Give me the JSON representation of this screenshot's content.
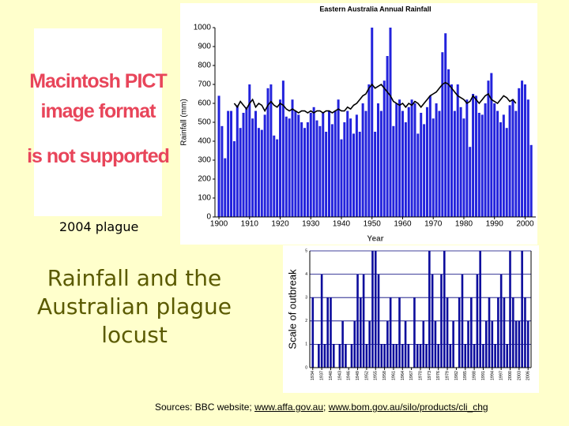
{
  "title": "Rainfall and the Australian plague locust",
  "placeholder": [
    "Macintosh PICT",
    "image format",
    "is not supported"
  ],
  "caption": "2004 plague",
  "sources": {
    "text": "Sources: BBC website;",
    "separator": ";",
    "links": [
      "www.affa.gov.au",
      "www.bom.gov.au/silo/products/cli_chg"
    ]
  },
  "chart_data": [
    {
      "type": "bar",
      "title": "Eastern Australia Annual Rainfall",
      "x_label": "Year",
      "y_label": "Rainfall (mm)",
      "x": [
        1900,
        1901,
        1902,
        1903,
        1904,
        1905,
        1906,
        1907,
        1908,
        1909,
        1910,
        1911,
        1912,
        1913,
        1914,
        1915,
        1916,
        1917,
        1918,
        1919,
        1920,
        1921,
        1922,
        1923,
        1924,
        1925,
        1926,
        1927,
        1928,
        1929,
        1930,
        1931,
        1932,
        1933,
        1934,
        1935,
        1936,
        1937,
        1938,
        1939,
        1940,
        1941,
        1942,
        1943,
        1944,
        1945,
        1946,
        1947,
        1948,
        1949,
        1950,
        1951,
        1952,
        1953,
        1954,
        1955,
        1956,
        1957,
        1958,
        1959,
        1960,
        1961,
        1962,
        1963,
        1964,
        1965,
        1966,
        1967,
        1968,
        1969,
        1970,
        1971,
        1972,
        1973,
        1974,
        1975,
        1976,
        1977,
        1978,
        1979,
        1980,
        1981,
        1982,
        1983,
        1984,
        1985,
        1986,
        1987,
        1988,
        1989,
        1990,
        1991,
        1992,
        1993,
        1994,
        1995,
        1996,
        1997,
        1998,
        1999,
        2000,
        2001,
        2002
      ],
      "series": [
        {
          "type": "bar",
          "color": "#2323dc",
          "values": [
            640,
            480,
            310,
            560,
            560,
            400,
            590,
            470,
            550,
            580,
            700,
            520,
            560,
            470,
            460,
            540,
            680,
            700,
            430,
            410,
            620,
            720,
            530,
            520,
            620,
            560,
            540,
            500,
            470,
            500,
            550,
            580,
            510,
            480,
            550,
            450,
            560,
            490,
            560,
            620,
            410,
            500,
            560,
            520,
            440,
            540,
            450,
            600,
            560,
            700,
            1000,
            450,
            600,
            560,
            720,
            850,
            1000,
            480,
            600,
            620,
            560,
            500,
            580,
            620,
            600,
            440,
            550,
            490,
            580,
            640,
            520,
            600,
            560,
            870,
            970,
            780,
            700,
            560,
            700,
            580,
            520,
            620,
            370,
            650,
            640,
            550,
            540,
            600,
            720,
            760,
            600,
            560,
            500,
            540,
            470,
            590,
            620,
            560,
            680,
            720,
            700,
            620,
            380
          ]
        },
        {
          "type": "line",
          "color": "#000000",
          "values": [
            null,
            null,
            null,
            null,
            null,
            600,
            580,
            610,
            590,
            570,
            600,
            620,
            580,
            600,
            590,
            560,
            590,
            610,
            590,
            580,
            600,
            590,
            570,
            560,
            570,
            560,
            550,
            560,
            560,
            550,
            560,
            550,
            560,
            560,
            550,
            560,
            560,
            550,
            560,
            570,
            560,
            560,
            580,
            570,
            590,
            600,
            620,
            640,
            650,
            680,
            700,
            680,
            690,
            700,
            680,
            660,
            640,
            610,
            600,
            590,
            600,
            580,
            600,
            590,
            610,
            600,
            580,
            600,
            620,
            640,
            650,
            660,
            680,
            700,
            710,
            700,
            680,
            660,
            640,
            630,
            620,
            600,
            610,
            640,
            620,
            600,
            620,
            640,
            650,
            620,
            610,
            600,
            620,
            640,
            630,
            610,
            620,
            600,
            null,
            null,
            null,
            null,
            null
          ]
        }
      ],
      "xlim": [
        1898.7,
        2003.5
      ],
      "ylim": [
        0,
        1000
      ],
      "xticks": [
        1900,
        1910,
        1920,
        1930,
        1940,
        1950,
        1960,
        1970,
        1980,
        1990,
        2000
      ],
      "yticks": [
        0,
        100,
        200,
        300,
        400,
        500,
        600,
        700,
        800,
        900,
        1000
      ]
    },
    {
      "type": "bar",
      "y_label": "Scale of outbreak",
      "x": [
        1934,
        1935,
        1936,
        1937,
        1938,
        1939,
        1940,
        1941,
        1942,
        1943,
        1944,
        1945,
        1946,
        1947,
        1948,
        1949,
        1950,
        1951,
        1952,
        1953,
        1954,
        1955,
        1956,
        1957,
        1958,
        1959,
        1960,
        1961,
        1962,
        1963,
        1964,
        1965,
        1966,
        1967,
        1968,
        1969,
        1970,
        1971,
        1972,
        1973,
        1974,
        1975,
        1976,
        1977,
        1978,
        1979,
        1980,
        1981,
        1982,
        1983,
        1984,
        1985,
        1986,
        1987,
        1988,
        1989,
        1990,
        1991,
        1992,
        1993,
        1994,
        1995,
        1996,
        1997,
        1998,
        1999,
        2000,
        2001,
        2002,
        2003,
        2004,
        2005,
        2006
      ],
      "series": [
        {
          "type": "bar",
          "color": "#0c0c9c",
          "values": [
            3,
            0,
            1,
            4,
            1,
            3,
            3,
            1,
            0,
            1,
            2,
            1,
            0,
            1,
            2,
            4,
            3,
            4,
            1,
            2,
            5,
            5,
            4,
            1,
            1,
            2,
            3,
            1,
            1,
            3,
            1,
            2,
            1,
            0,
            3,
            1,
            1,
            2,
            1,
            5,
            4,
            2,
            1,
            4,
            5,
            3,
            1,
            2,
            0,
            3,
            4,
            1,
            2,
            3,
            1,
            4,
            5,
            1,
            2,
            3,
            2,
            1,
            3,
            4,
            3,
            1,
            5,
            3,
            2,
            2,
            5,
            3,
            2
          ]
        }
      ],
      "xlim": [
        1933,
        2007
      ],
      "ylim": [
        0,
        5
      ],
      "yticks": [
        0,
        1,
        2,
        3,
        4,
        5
      ],
      "grid": true,
      "xticks": [
        1934,
        1937,
        1940,
        1943,
        1946,
        1949,
        1952,
        1955,
        1958,
        1961,
        1964,
        1967,
        1970,
        1973,
        1976,
        1979,
        1982,
        1985,
        1988,
        1991,
        1994,
        1997,
        2000,
        2003,
        2006
      ]
    }
  ]
}
